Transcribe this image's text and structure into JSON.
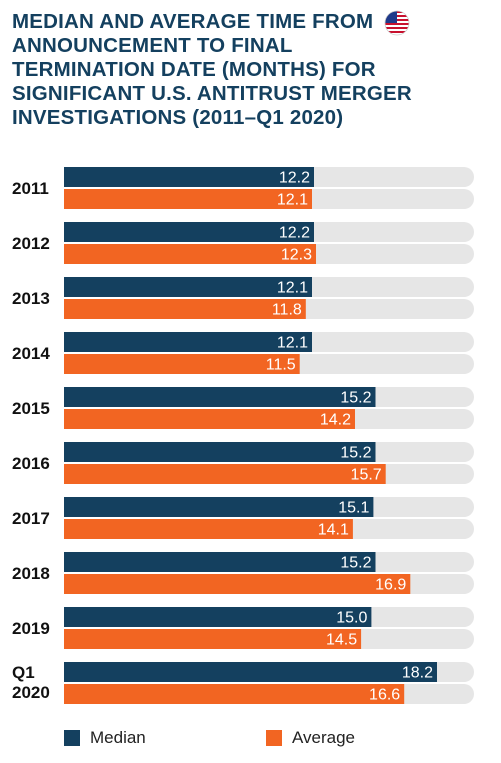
{
  "title": "MEDIAN AND AVERAGE TIME FROM ANNOUNCEMENT TO FINAL TERMINATION DATE (MONTHS) FOR SIGNIFICANT U.S. ANTITRUST MERGER INVESTIGATIONS (2011–Q1 2020)",
  "flag_icon": "us-flag-icon",
  "colors": {
    "median": "#14405f",
    "average": "#f26522",
    "track": "#e6e6e6",
    "title": "#14405f"
  },
  "chart_data": {
    "type": "bar",
    "orientation": "horizontal",
    "title": "MEDIAN AND AVERAGE TIME FROM ANNOUNCEMENT TO FINAL TERMINATION DATE (MONTHS) FOR SIGNIFICANT U.S. ANTITRUST MERGER INVESTIGATIONS (2011–Q1 2020)",
    "categories": [
      "2011",
      "2012",
      "2013",
      "2014",
      "2015",
      "2016",
      "2017",
      "2018",
      "2019",
      "Q1 2020"
    ],
    "series": [
      {
        "name": "Median",
        "values": [
          12.2,
          12.2,
          12.1,
          12.1,
          15.2,
          15.2,
          15.1,
          15.2,
          15.0,
          18.2
        ]
      },
      {
        "name": "Average",
        "values": [
          12.1,
          12.3,
          11.8,
          11.5,
          14.2,
          15.7,
          14.1,
          16.9,
          14.5,
          16.6
        ]
      }
    ],
    "value_labels": {
      "Median": [
        "12.2",
        "12.2",
        "12.1",
        "12.1",
        "15.2",
        "15.2",
        "15.1",
        "15.2",
        "15.0",
        "18.2"
      ],
      "Average": [
        "12.1",
        "12.3",
        "11.8",
        "11.5",
        "14.2",
        "15.7",
        "14.1",
        "16.9",
        "14.5",
        "16.6"
      ]
    },
    "xlim": [
      0,
      20
    ],
    "grid": false,
    "legend_position": "bottom"
  },
  "legend": [
    {
      "label": "Median"
    },
    {
      "label": "Average"
    }
  ]
}
